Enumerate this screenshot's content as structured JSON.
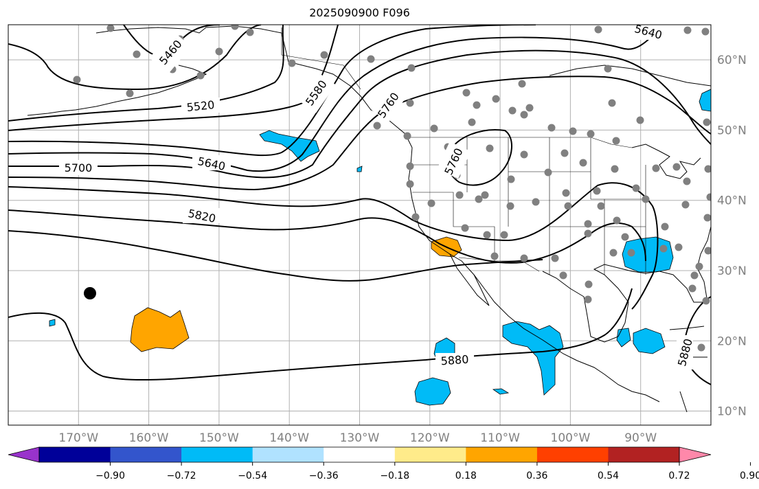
{
  "title": "2025090900 F096",
  "map": {
    "lon_range": [
      -180,
      -80
    ],
    "lat_range": [
      8,
      65
    ],
    "lon_ticks": [
      "170°W",
      "160°W",
      "150°W",
      "140°W",
      "130°W",
      "120°W",
      "110°W",
      "100°W",
      "90°W"
    ],
    "lat_ticks": [
      "10°N",
      "20°N",
      "30°N",
      "40°N",
      "50°N",
      "60°N"
    ],
    "contour_labels": [
      "5460",
      "5520",
      "5580",
      "5640",
      "5700",
      "5760",
      "5820",
      "5760",
      "5880",
      "5880",
      "5640"
    ],
    "grid": true
  },
  "colorbar": {
    "ticks": [
      "−0.90",
      "−0.72",
      "−0.54",
      "−0.36",
      "−0.18",
      "0.18",
      "0.36",
      "0.54",
      "0.72",
      "0.90"
    ],
    "colors": [
      "#9933cc",
      "#000099",
      "#3355cc",
      "#00bbf7",
      "#b0e2ff",
      "#ffffff",
      "#ffeb8a",
      "#ffa500",
      "#ff4000",
      "#b22222",
      "#ff88aa"
    ]
  }
}
